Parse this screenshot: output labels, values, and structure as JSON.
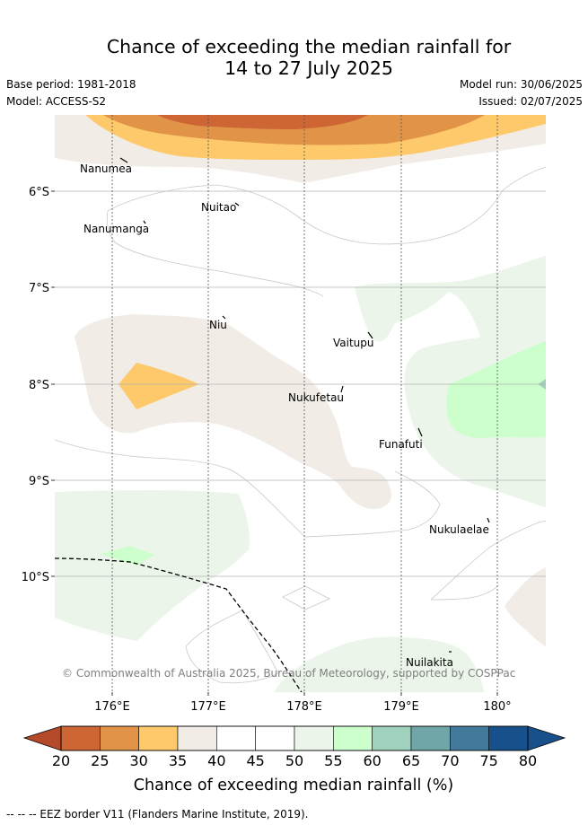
{
  "header": {
    "title_line1": "Chance of exceeding the median rainfall for",
    "title_line2": "14 to 27 July 2025",
    "base_period": "Base period: 1981-2018",
    "model": "Model: ACCESS-S2",
    "model_run": "Model run: 30/06/2025",
    "issued": "Issued: 02/07/2025"
  },
  "map": {
    "longitude_ticks": [
      "176°E",
      "177°E",
      "178°E",
      "179°E",
      "180°"
    ],
    "latitude_ticks": [
      "6°S",
      "7°S",
      "8°S",
      "9°S",
      "10°S"
    ],
    "places": [
      "Nanumea",
      "Nuitao",
      "Nanumanga",
      "Niu",
      "Vaitupu",
      "Nukufetau",
      "Funafuti",
      "Nukulaelae",
      "Nuilakita"
    ],
    "credit": "© Commonwealth of Australia 2025, Bureau of Meteorology, supported by COSPPac"
  },
  "colorbar": {
    "ticks": [
      "20",
      "25",
      "30",
      "35",
      "40",
      "45",
      "50",
      "55",
      "60",
      "65",
      "70",
      "75",
      "80"
    ],
    "colors": [
      "#b44a2a",
      "#cd6634",
      "#e19448",
      "#fdc96b",
      "#f1ede6",
      "#ffffff",
      "#ffffff",
      "#ebf5e9",
      "#ccffcc",
      "#9fd1bc",
      "#70a6a8",
      "#43799a",
      "#18508b"
    ],
    "title": "Chance of exceeding median rainfall (%)"
  },
  "footer": {
    "legend": "-- -- -- EEZ border V11 (Flanders Marine Institute, 2019)."
  }
}
